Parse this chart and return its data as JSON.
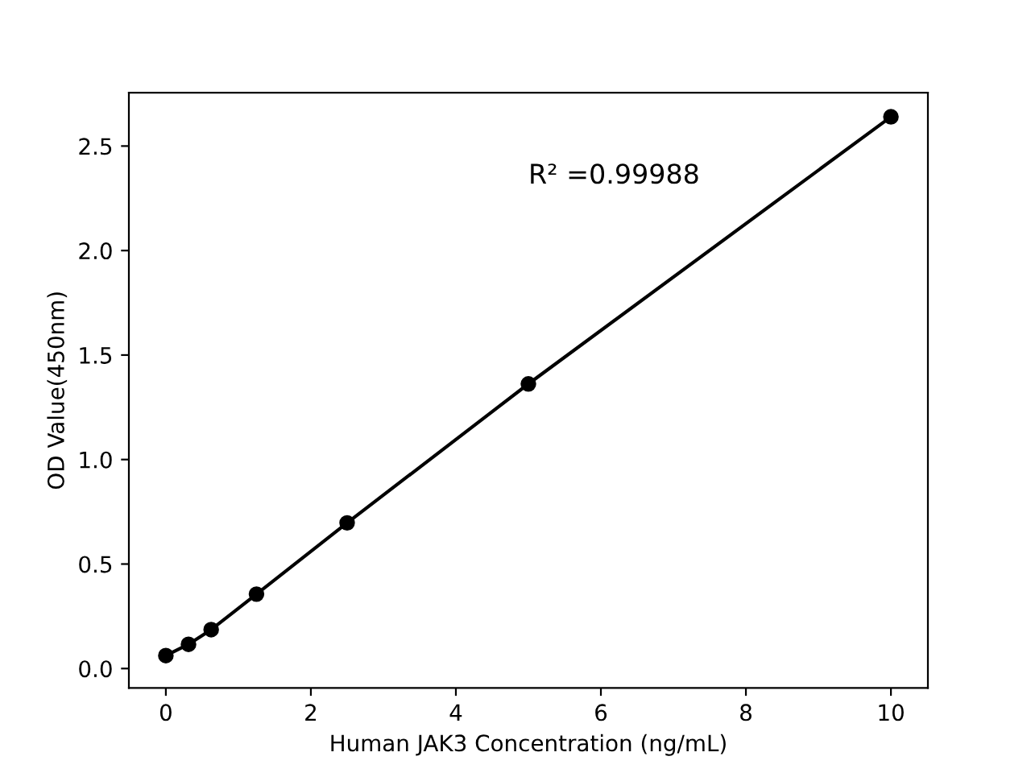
{
  "chart_data": {
    "type": "line",
    "xlabel": "Human JAK3 Concentration (ng/mL)",
    "ylabel": "OD Value(450nm)",
    "x": [
      0,
      0.3125,
      0.625,
      1.25,
      2.5,
      5,
      10
    ],
    "series": [
      {
        "color": "#000000",
        "values": [
          0.062,
          0.116,
          0.186,
          0.356,
          0.697,
          1.362,
          2.64
        ]
      }
    ],
    "marker": "circle",
    "line_style": "solid",
    "xlim": [
      -0.51,
      10.51
    ],
    "ylim": [
      -0.093,
      2.755
    ],
    "xticks": [
      0,
      2,
      4,
      6,
      8,
      10
    ],
    "yticks": [
      {
        "value": 0,
        "label": "0.0"
      },
      0.5,
      {
        "value": 1,
        "label": "1.0"
      },
      1.5,
      {
        "value": 2,
        "label": "2.0"
      },
      2.5
    ],
    "annotations": [
      "R² =0.99988"
    ],
    "grid": false,
    "legend": false
  }
}
